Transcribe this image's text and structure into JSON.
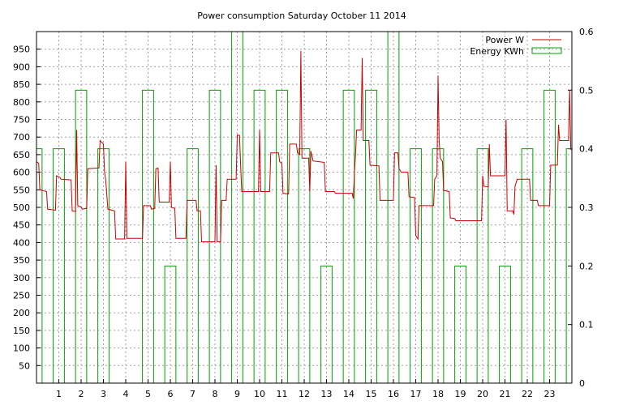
{
  "chart_data": {
    "type": "line",
    "title": "Power consumption Saturday October 11 2014",
    "x_ticks": [
      "1",
      "2",
      "3",
      "4",
      "5",
      "6",
      "7",
      "8",
      "9",
      "10",
      "11",
      "12",
      "13",
      "14",
      "15",
      "16",
      "17",
      "18",
      "19",
      "20",
      "21",
      "22",
      "23"
    ],
    "xlim": [
      0,
      24
    ],
    "ylim": [
      0,
      1000
    ],
    "y_ticks": [
      "50",
      "100",
      "150",
      "200",
      "250",
      "300",
      "350",
      "400",
      "450",
      "500",
      "550",
      "600",
      "650",
      "700",
      "750",
      "800",
      "850",
      "900",
      "950"
    ],
    "y2lim": [
      0,
      0.6
    ],
    "y2_ticks": [
      "0",
      "0.1",
      "0.2",
      "0.3",
      "0.4",
      "0.5",
      "0.6"
    ],
    "grid": true,
    "legend_position": "top-right",
    "colors": {
      "power": "#cc0000",
      "energy": "#00a000"
    },
    "series": [
      {
        "name": "Power W",
        "axis": "left",
        "style": "line",
        "points": [
          [
            0.0,
            630
          ],
          [
            0.1,
            625
          ],
          [
            0.15,
            550
          ],
          [
            0.45,
            545
          ],
          [
            0.5,
            495
          ],
          [
            0.85,
            492
          ],
          [
            0.9,
            590
          ],
          [
            1.05,
            585
          ],
          [
            1.1,
            580
          ],
          [
            1.55,
            578
          ],
          [
            1.6,
            490
          ],
          [
            1.75,
            488
          ],
          [
            1.8,
            720
          ],
          [
            1.85,
            505
          ],
          [
            2.0,
            500
          ],
          [
            2.05,
            495
          ],
          [
            2.25,
            497
          ],
          [
            2.3,
            610
          ],
          [
            2.8,
            612
          ],
          [
            2.85,
            690
          ],
          [
            3.0,
            680
          ],
          [
            3.05,
            600
          ],
          [
            3.1,
            580
          ],
          [
            3.2,
            495
          ],
          [
            3.5,
            490
          ],
          [
            3.55,
            410
          ],
          [
            3.95,
            410
          ],
          [
            4.0,
            630
          ],
          [
            4.05,
            412
          ],
          [
            4.75,
            412
          ],
          [
            4.8,
            505
          ],
          [
            5.1,
            505
          ],
          [
            5.15,
            495
          ],
          [
            5.3,
            497
          ],
          [
            5.35,
            610
          ],
          [
            5.45,
            612
          ],
          [
            5.5,
            515
          ],
          [
            5.95,
            515
          ],
          [
            6.0,
            630
          ],
          [
            6.05,
            500
          ],
          [
            6.2,
            497
          ],
          [
            6.25,
            412
          ],
          [
            6.7,
            412
          ],
          [
            6.75,
            520
          ],
          [
            7.15,
            520
          ],
          [
            7.2,
            490
          ],
          [
            7.35,
            490
          ],
          [
            7.4,
            402
          ],
          [
            8.0,
            402
          ],
          [
            8.05,
            620
          ],
          [
            8.1,
            402
          ],
          [
            8.25,
            402
          ],
          [
            8.3,
            520
          ],
          [
            8.5,
            520
          ],
          [
            8.55,
            580
          ],
          [
            8.95,
            580
          ],
          [
            9.0,
            705
          ],
          [
            9.1,
            705
          ],
          [
            9.15,
            620
          ],
          [
            9.2,
            545
          ],
          [
            9.95,
            545
          ],
          [
            10.0,
            720
          ],
          [
            10.05,
            545
          ],
          [
            10.45,
            545
          ],
          [
            10.5,
            655
          ],
          [
            10.85,
            655
          ],
          [
            10.9,
            630
          ],
          [
            11.0,
            625
          ],
          [
            11.05,
            540
          ],
          [
            11.3,
            538
          ],
          [
            11.35,
            680
          ],
          [
            11.65,
            680
          ],
          [
            11.7,
            655
          ],
          [
            11.8,
            650
          ],
          [
            11.85,
            945
          ],
          [
            11.9,
            640
          ],
          [
            12.2,
            640
          ],
          [
            12.25,
            545
          ],
          [
            12.3,
            660
          ],
          [
            12.4,
            632
          ],
          [
            12.9,
            628
          ],
          [
            12.95,
            545
          ],
          [
            13.35,
            545
          ],
          [
            13.4,
            540
          ],
          [
            14.15,
            540
          ],
          [
            14.2,
            525
          ],
          [
            14.25,
            595
          ],
          [
            14.3,
            650
          ],
          [
            14.35,
            720
          ],
          [
            14.55,
            720
          ],
          [
            14.6,
            925
          ],
          [
            14.65,
            690
          ],
          [
            14.9,
            690
          ],
          [
            14.95,
            620
          ],
          [
            15.35,
            618
          ],
          [
            15.4,
            520
          ],
          [
            16.0,
            520
          ],
          [
            16.05,
            655
          ],
          [
            16.2,
            655
          ],
          [
            16.25,
            610
          ],
          [
            16.35,
            600
          ],
          [
            16.65,
            600
          ],
          [
            16.7,
            530
          ],
          [
            16.95,
            528
          ],
          [
            17.0,
            420
          ],
          [
            17.1,
            410
          ],
          [
            17.15,
            505
          ],
          [
            17.8,
            505
          ],
          [
            17.85,
            580
          ],
          [
            17.95,
            590
          ],
          [
            18.0,
            875
          ],
          [
            18.05,
            690
          ],
          [
            18.1,
            640
          ],
          [
            18.2,
            630
          ],
          [
            18.25,
            548
          ],
          [
            18.5,
            545
          ],
          [
            18.55,
            470
          ],
          [
            18.75,
            468
          ],
          [
            18.8,
            462
          ],
          [
            19.95,
            462
          ],
          [
            20.0,
            590
          ],
          [
            20.05,
            560
          ],
          [
            20.25,
            558
          ],
          [
            20.3,
            680
          ],
          [
            20.35,
            590
          ],
          [
            21.0,
            590
          ],
          [
            21.05,
            750
          ],
          [
            21.1,
            490
          ],
          [
            21.35,
            490
          ],
          [
            21.4,
            480
          ],
          [
            21.45,
            560
          ],
          [
            21.55,
            580
          ],
          [
            22.1,
            580
          ],
          [
            22.15,
            520
          ],
          [
            22.45,
            520
          ],
          [
            22.5,
            505
          ],
          [
            23.0,
            505
          ],
          [
            23.05,
            620
          ],
          [
            23.35,
            620
          ],
          [
            23.4,
            735
          ],
          [
            23.45,
            690
          ],
          [
            23.85,
            690
          ],
          [
            23.9,
            835
          ],
          [
            23.95,
            665
          ],
          [
            24.0,
            665
          ]
        ]
      },
      {
        "name": "Energy KWh",
        "axis": "right",
        "style": "steps",
        "points": [
          [
            0.0,
            0.4
          ],
          [
            0.25,
            0.0
          ],
          [
            0.75,
            0.4
          ],
          [
            1.25,
            0.0
          ],
          [
            1.75,
            0.5
          ],
          [
            2.25,
            0.0
          ],
          [
            2.75,
            0.4
          ],
          [
            3.25,
            0.0
          ],
          [
            4.75,
            0.5
          ],
          [
            5.25,
            0.0
          ],
          [
            5.75,
            0.2
          ],
          [
            6.25,
            0.0
          ],
          [
            6.75,
            0.4
          ],
          [
            7.25,
            0.0
          ],
          [
            7.75,
            0.5
          ],
          [
            8.25,
            0.0
          ],
          [
            8.75,
            0.6
          ],
          [
            9.25,
            0.0
          ],
          [
            9.75,
            0.5
          ],
          [
            10.25,
            0.0
          ],
          [
            10.75,
            0.5
          ],
          [
            11.25,
            0.0
          ],
          [
            11.75,
            0.4
          ],
          [
            12.25,
            0.0
          ],
          [
            12.75,
            0.2
          ],
          [
            13.25,
            0.0
          ],
          [
            13.75,
            0.5
          ],
          [
            14.25,
            0.0
          ],
          [
            14.75,
            0.5
          ],
          [
            15.25,
            0.0
          ],
          [
            15.75,
            0.6
          ],
          [
            16.25,
            0.0
          ],
          [
            16.75,
            0.4
          ],
          [
            17.25,
            0.0
          ],
          [
            17.75,
            0.4
          ],
          [
            18.25,
            0.0
          ],
          [
            18.75,
            0.2
          ],
          [
            19.25,
            0.0
          ],
          [
            19.75,
            0.4
          ],
          [
            20.25,
            0.0
          ],
          [
            20.75,
            0.2
          ],
          [
            21.25,
            0.0
          ],
          [
            21.75,
            0.4
          ],
          [
            22.25,
            0.0
          ],
          [
            22.75,
            0.5
          ],
          [
            23.25,
            0.0
          ],
          [
            23.75,
            0.4
          ],
          [
            24.0,
            0.4
          ]
        ]
      }
    ]
  }
}
